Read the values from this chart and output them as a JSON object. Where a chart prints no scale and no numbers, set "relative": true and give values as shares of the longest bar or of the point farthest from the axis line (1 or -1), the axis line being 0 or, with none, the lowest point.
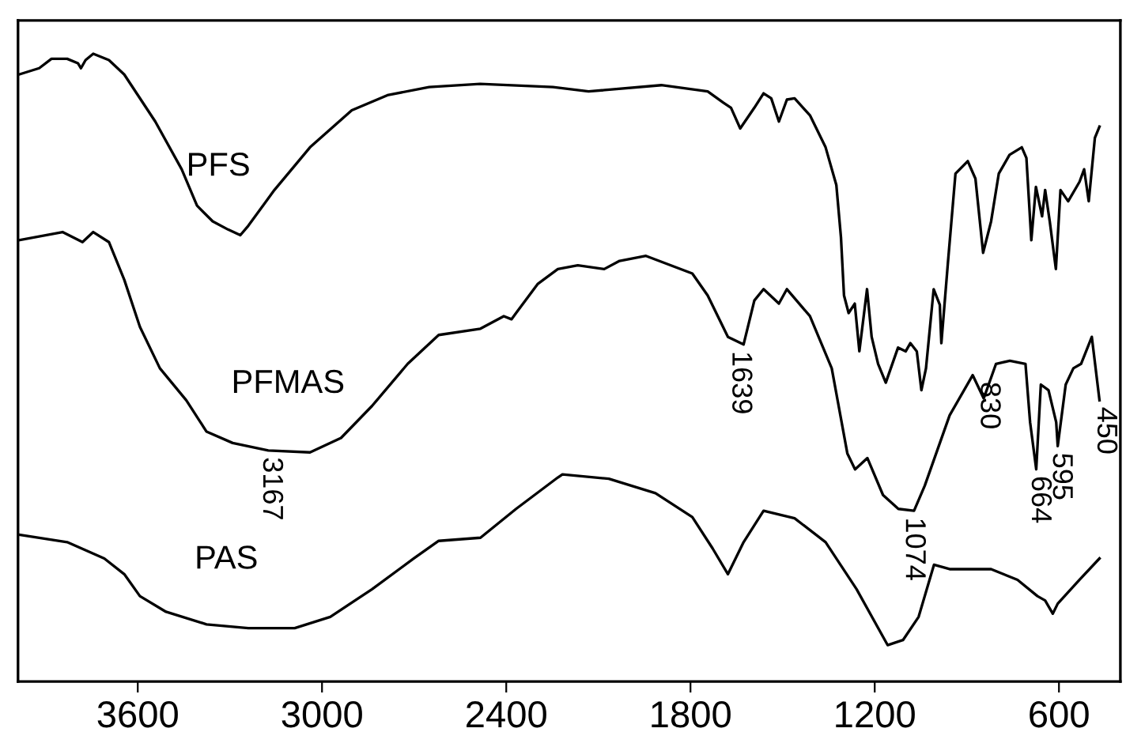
{
  "chart_data": {
    "type": "line",
    "relative": true,
    "xlim": [
      3990,
      400
    ],
    "xticks": [
      3600,
      3000,
      2400,
      1800,
      1200,
      600
    ],
    "tick_labels": "x",
    "grid": false,
    "legend": false,
    "marker": "none",
    "line_style": "solid",
    "series": [
      {
        "name": "PFS",
        "color": "#000000",
        "x": [
          3987,
          3921,
          3881,
          3830,
          3795,
          3785,
          3770,
          3745,
          3694,
          3644,
          3543,
          3457,
          3407,
          3356,
          3306,
          3266,
          3240,
          3155,
          3039,
          2903,
          2787,
          2651,
          2485,
          2248,
          2132,
          1895,
          1744,
          1693,
          1668,
          1638,
          1592,
          1562,
          1537,
          1512,
          1486,
          1461,
          1411,
          1360,
          1325,
          1310,
          1300,
          1285,
          1265,
          1250,
          1225,
          1210,
          1189,
          1164,
          1124,
          1099,
          1084,
          1063,
          1048,
          1033,
          1008,
          988,
          983,
          962,
          937,
          897,
          872,
          847,
          821,
          796,
          761,
          721,
          706,
          690,
          675,
          655,
          645,
          630,
          610,
          595,
          570,
          533,
          518,
          503,
          483,
          468
        ],
        "values": [
          0.967,
          0.977,
          0.992,
          0.992,
          0.985,
          0.977,
          0.99,
          1.0,
          0.99,
          0.967,
          0.892,
          0.816,
          0.758,
          0.733,
          0.72,
          0.711,
          0.726,
          0.783,
          0.851,
          0.91,
          0.934,
          0.947,
          0.952,
          0.947,
          0.94,
          0.95,
          0.94,
          0.922,
          0.914,
          0.881,
          0.914,
          0.937,
          0.929,
          0.892,
          0.927,
          0.929,
          0.902,
          0.851,
          0.791,
          0.708,
          0.615,
          0.587,
          0.602,
          0.526,
          0.625,
          0.549,
          0.506,
          0.476,
          0.532,
          0.526,
          0.539,
          0.526,
          0.464,
          0.499,
          0.625,
          0.6,
          0.539,
          0.665,
          0.809,
          0.829,
          0.801,
          0.683,
          0.733,
          0.809,
          0.839,
          0.851,
          0.834,
          0.703,
          0.788,
          0.741,
          0.783,
          0.733,
          0.657,
          0.783,
          0.765,
          0.796,
          0.816,
          0.765,
          0.866,
          0.884
        ]
      },
      {
        "name": "PFMAS",
        "color": "#000000",
        "x": [
          3987,
          3845,
          3780,
          3745,
          3694,
          3644,
          3593,
          3528,
          3442,
          3376,
          3291,
          3175,
          3039,
          2938,
          2837,
          2721,
          2620,
          2484,
          2408,
          2383,
          2368,
          2298,
          2232,
          2167,
          2081,
          2031,
          1945,
          1794,
          1744,
          1678,
          1627,
          1592,
          1562,
          1512,
          1486,
          1411,
          1340,
          1289,
          1264,
          1224,
          1173,
          1123,
          1072,
          1037,
          956,
          881,
          845,
          805,
          760,
          709,
          694,
          674,
          659,
          634,
          609,
          604,
          578,
          553,
          528,
          493,
          468
        ],
        "values": [
          0.703,
          0.716,
          0.7,
          0.716,
          0.7,
          0.64,
          0.565,
          0.499,
          0.448,
          0.398,
          0.38,
          0.368,
          0.365,
          0.388,
          0.439,
          0.506,
          0.552,
          0.562,
          0.582,
          0.577,
          0.587,
          0.633,
          0.657,
          0.663,
          0.657,
          0.67,
          0.678,
          0.65,
          0.615,
          0.549,
          0.537,
          0.607,
          0.625,
          0.602,
          0.625,
          0.582,
          0.499,
          0.363,
          0.338,
          0.356,
          0.297,
          0.275,
          0.272,
          0.312,
          0.424,
          0.488,
          0.451,
          0.506,
          0.511,
          0.506,
          0.413,
          0.338,
          0.473,
          0.464,
          0.413,
          0.375,
          0.473,
          0.499,
          0.506,
          0.549,
          0.448
        ]
      },
      {
        "name": "PAS",
        "color": "#000000",
        "x": [
          3987,
          3830,
          3709,
          3644,
          3593,
          3508,
          3376,
          3240,
          3089,
          2973,
          2837,
          2701,
          2620,
          2484,
          2368,
          2232,
          2217,
          2066,
          1914,
          1794,
          1728,
          1678,
          1627,
          1562,
          1461,
          1360,
          1259,
          1158,
          1108,
          1057,
          1007,
          956,
          886,
          821,
          735,
          670,
          645,
          620,
          604,
          533,
          468
        ],
        "values": [
          0.234,
          0.222,
          0.196,
          0.171,
          0.136,
          0.111,
          0.091,
          0.085,
          0.085,
          0.103,
          0.147,
          0.196,
          0.224,
          0.229,
          0.275,
          0.325,
          0.33,
          0.323,
          0.3,
          0.262,
          0.212,
          0.171,
          0.222,
          0.272,
          0.26,
          0.222,
          0.147,
          0.058,
          0.066,
          0.103,
          0.186,
          0.179,
          0.179,
          0.179,
          0.162,
          0.136,
          0.129,
          0.108,
          0.124,
          0.162,
          0.196
        ]
      }
    ],
    "annotations": [
      {
        "text": "3167",
        "x": 3167,
        "y": 0.368
      },
      {
        "text": "1639",
        "x": 1639,
        "y": 0.537
      },
      {
        "text": "1074",
        "x": 1074,
        "y": 0.272
      },
      {
        "text": "830",
        "x": 830,
        "y": 0.488
      },
      {
        "text": "664",
        "x": 664,
        "y": 0.338
      },
      {
        "text": "595",
        "x": 595,
        "y": 0.375
      },
      {
        "text": "450",
        "x": 450,
        "y": 0.448
      }
    ]
  }
}
